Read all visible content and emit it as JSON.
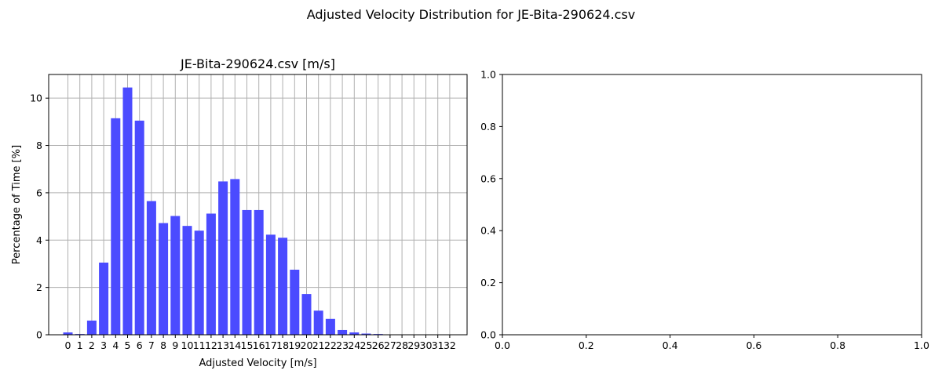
{
  "suptitle": "Adjusted Velocity Distribution for JE-Bita-290624.csv",
  "chart_data": [
    {
      "type": "bar",
      "title": "JE-Bita-290624.csv [m/s]",
      "xlabel": "Adjusted Velocity [m/s]",
      "ylabel": "Percentage of Time [%]",
      "categories": [
        "0",
        "1",
        "2",
        "3",
        "4",
        "5",
        "6",
        "7",
        "8",
        "9",
        "10",
        "11",
        "12",
        "13",
        "14",
        "15",
        "16",
        "17",
        "18",
        "19",
        "20",
        "21",
        "22",
        "23",
        "24",
        "25",
        "26",
        "27",
        "28",
        "29",
        "30",
        "31",
        "32"
      ],
      "values": [
        0.1,
        0.03,
        0.6,
        3.05,
        9.15,
        10.45,
        9.05,
        5.65,
        4.72,
        5.02,
        4.6,
        4.4,
        5.12,
        6.48,
        6.58,
        5.27,
        5.27,
        4.23,
        4.1,
        2.75,
        1.72,
        1.02,
        0.67,
        0.2,
        0.1,
        0.05,
        0.03,
        0.01,
        0.01,
        0.0,
        0.0,
        0.0,
        0.0
      ],
      "ylim": [
        0,
        11
      ],
      "yticks": [
        0,
        2,
        4,
        6,
        8,
        10
      ],
      "grid": true,
      "bar_color": "#4b4bff"
    },
    {
      "type": "empty",
      "xlim": [
        0,
        1
      ],
      "ylim": [
        0,
        1
      ],
      "xticks": [
        "0.0",
        "0.2",
        "0.4",
        "0.6",
        "0.8",
        "1.0"
      ],
      "yticks": [
        "0.0",
        "0.2",
        "0.4",
        "0.6",
        "0.8",
        "1.0"
      ],
      "grid": false
    }
  ]
}
